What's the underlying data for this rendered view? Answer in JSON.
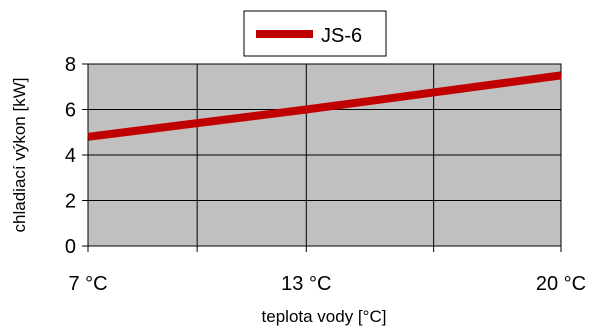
{
  "chart_data": {
    "type": "line",
    "title": "",
    "xlabel": "teplota vody [°C]",
    "ylabel": "chladiací výkon [kW]",
    "x_ticks": [
      {
        "value": 7,
        "label": "7 °C"
      },
      {
        "value": 13,
        "label": "13 °C"
      },
      {
        "value": 20,
        "label": "20 °C"
      }
    ],
    "x_vgrid": [
      7,
      10,
      13,
      16.5,
      20
    ],
    "xlim": [
      7,
      20
    ],
    "ylim": [
      0,
      8
    ],
    "y_ticks": [
      {
        "value": 0,
        "label": "0"
      },
      {
        "value": 2,
        "label": "2"
      },
      {
        "value": 4,
        "label": "4"
      },
      {
        "value": 6,
        "label": "6"
      },
      {
        "value": 8,
        "label": "8"
      }
    ],
    "grid": true,
    "legend_position": "top-center",
    "series": [
      {
        "name": "JS-6",
        "color": "#c00000",
        "x": [
          7,
          13,
          20
        ],
        "y": [
          4.8,
          6.0,
          7.5
        ]
      }
    ]
  }
}
